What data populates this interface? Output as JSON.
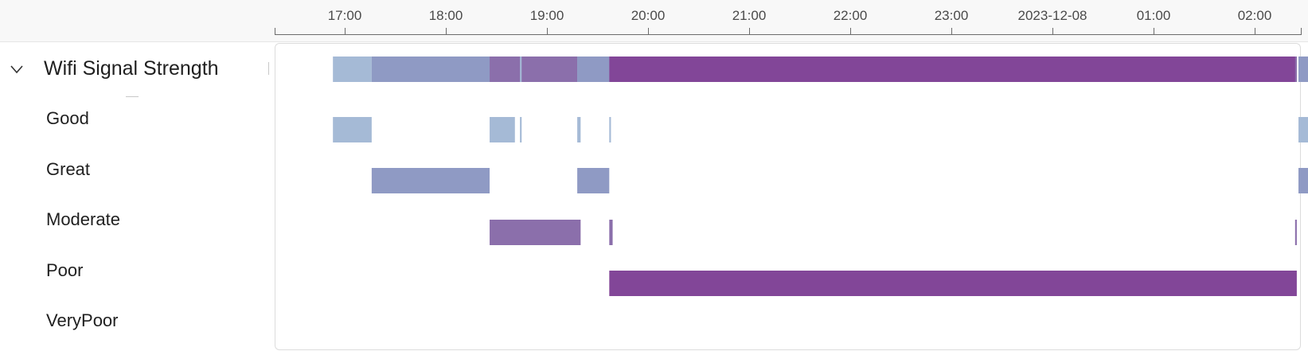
{
  "timeline": {
    "ticks": [
      "17:00",
      "18:00",
      "19:00",
      "20:00",
      "21:00",
      "22:00",
      "23:00",
      "2023-12-08",
      "01:00",
      "02:00"
    ]
  },
  "group": {
    "title": "Wifi Signal Strength",
    "expanded": true,
    "icon": "chevron-down-icon"
  },
  "rows": [
    {
      "label": "Good"
    },
    {
      "label": "Great"
    },
    {
      "label": "Moderate"
    },
    {
      "label": "Poor"
    },
    {
      "label": "VeryPoor"
    }
  ],
  "colors": {
    "Good": "#a5bad6",
    "Great": "#8f9ac4",
    "Moderate": "#8b6fab",
    "Poor": "#824698",
    "VeryPoor": "#6a2a84"
  },
  "chart_data": {
    "type": "timeline",
    "x_axis": "time",
    "categories": [
      "Good",
      "Great",
      "Moderate",
      "Poor",
      "VeryPoor"
    ],
    "segments": [
      {
        "state": "Good",
        "start": "16:53",
        "end": "17:16"
      },
      {
        "state": "Great",
        "start": "17:16",
        "end": "18:26"
      },
      {
        "state": "Good",
        "start": "18:26",
        "end": "18:41"
      },
      {
        "state": "Moderate",
        "start": "18:26",
        "end": "19:20"
      },
      {
        "state": "Good",
        "start": "18:44",
        "end": "18:45"
      },
      {
        "state": "Good",
        "start": "19:18",
        "end": "19:20"
      },
      {
        "state": "Great",
        "start": "19:18",
        "end": "19:37"
      },
      {
        "state": "Good",
        "start": "19:37",
        "end": "19:38"
      },
      {
        "state": "Moderate",
        "start": "19:37",
        "end": "19:39"
      },
      {
        "state": "Poor",
        "start": "19:37",
        "end": "02:25"
      },
      {
        "state": "Moderate",
        "start": "02:24",
        "end": "02:25"
      },
      {
        "state": "Good",
        "start": "02:26",
        "end": "02:35"
      },
      {
        "state": "Great",
        "start": "02:26",
        "end": "02:35"
      }
    ]
  }
}
